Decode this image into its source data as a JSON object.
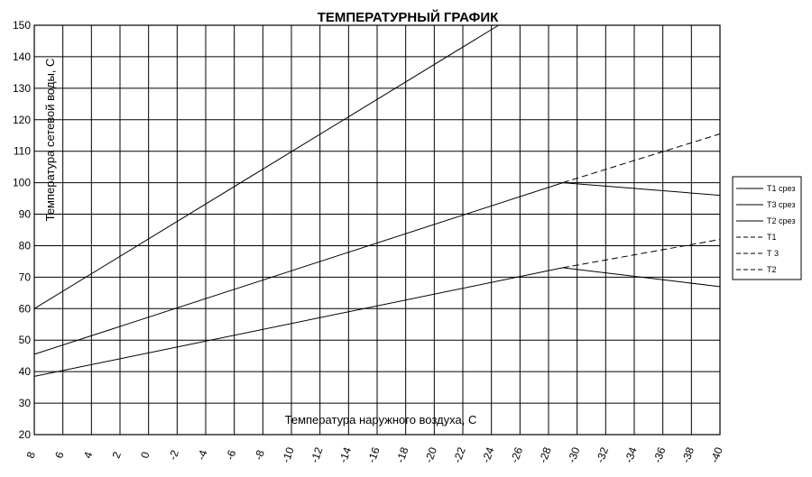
{
  "chart_data": {
    "type": "line",
    "title": "ТЕМПЕРАТУРНЫЙ  ГРАФИК",
    "xlabel": "Температура наружного воздуха, С",
    "ylabel": "Температура сетевой воды, С",
    "xlim": [
      8,
      -40
    ],
    "ylim": [
      20,
      150
    ],
    "x_ticks": [
      "8",
      "6",
      "4",
      "2",
      "0",
      "-2",
      "-4",
      "-6",
      "-8",
      "-10",
      "-12",
      "-14",
      "-16",
      "-18",
      "-20",
      "-22",
      "-24",
      "-26",
      "-28",
      "-30",
      "-32",
      "-34",
      "-36",
      "-38",
      "-40"
    ],
    "y_ticks": [
      "20",
      "30",
      "40",
      "50",
      "60",
      "70",
      "80",
      "90",
      "100",
      "110",
      "120",
      "130",
      "140",
      "150"
    ],
    "grid": true,
    "legend_position": "right",
    "legend": [
      "Т1 срез",
      "Т3 срез",
      "Т2 срез",
      "Т1",
      "Т 3",
      "Т2"
    ],
    "series": [
      {
        "name": "Т1 срез",
        "dash": "solid",
        "x": [
          8,
          -24.5
        ],
        "y": [
          60,
          150
        ]
      },
      {
        "name": "Т3 срез",
        "dash": "solid",
        "x": [
          8,
          -29,
          -40
        ],
        "y": [
          45.5,
          100,
          96
        ]
      },
      {
        "name": "Т2 срез",
        "dash": "solid",
        "x": [
          8,
          -29,
          -40
        ],
        "y": [
          38.5,
          73,
          67
        ]
      },
      {
        "name": "Т1",
        "dash": "dashed",
        "x": [],
        "y": []
      },
      {
        "name": "Т 3",
        "dash": "dashed",
        "x": [
          -29,
          -40
        ],
        "y": [
          100,
          115.5
        ]
      },
      {
        "name": "Т2",
        "dash": "dashed",
        "x": [
          -29,
          -40
        ],
        "y": [
          73,
          82
        ]
      }
    ]
  }
}
